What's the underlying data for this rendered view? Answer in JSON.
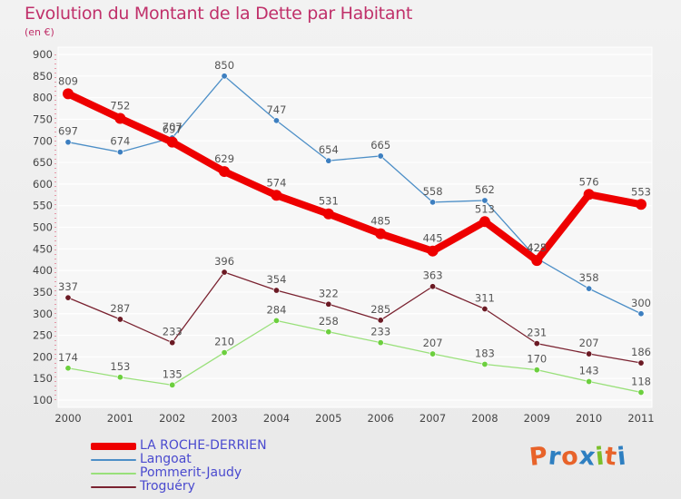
{
  "title": "Evolution du Montant de la Dette par Habitant",
  "subtitle": "(en €)",
  "logo": {
    "letters": [
      "P",
      "r",
      "o",
      "x",
      "i",
      "t",
      "i"
    ],
    "colors": [
      "#e8632a",
      "#2e7fc1",
      "#e8632a",
      "#2e7fc1",
      "#7bbf2a",
      "#e8632a",
      "#2e7fc1"
    ]
  },
  "chart_data": {
    "type": "line",
    "title": "Evolution du Montant de la Dette par Habitant",
    "subtitle": "(en €)",
    "xlabel": "",
    "ylabel": "",
    "categories": [
      "2000",
      "2001",
      "2002",
      "2003",
      "2004",
      "2005",
      "2006",
      "2007",
      "2008",
      "2009",
      "2010",
      "2011"
    ],
    "yticks": [
      100,
      150,
      200,
      250,
      300,
      350,
      400,
      450,
      500,
      550,
      600,
      650,
      700,
      750,
      800,
      850,
      900
    ],
    "ylim": [
      100,
      900
    ],
    "grid": "horizontal",
    "legend_position": "bottom-left",
    "series": [
      {
        "name": "Langoat",
        "color": "#4d8fc7",
        "marker": "#3d7fc0",
        "width": 1.3,
        "values": [
          697,
          674,
          707,
          850,
          747,
          654,
          665,
          558,
          562,
          428,
          358,
          300
        ]
      },
      {
        "name": "Pommerit-Jaudy",
        "color": "#99e07a",
        "marker": "#6ccf3e",
        "width": 1.3,
        "values": [
          174,
          153,
          135,
          210,
          284,
          258,
          233,
          207,
          183,
          170,
          143,
          118
        ]
      },
      {
        "name": "Troguéry",
        "color": "#7a2230",
        "marker": "#6b1a24",
        "width": 1.3,
        "values": [
          337,
          287,
          233,
          396,
          354,
          322,
          285,
          363,
          311,
          231,
          207,
          186
        ]
      },
      {
        "name": "LA ROCHE-DERRIEN",
        "color": "#ee0000",
        "marker": "#ee0000",
        "width": 8,
        "values": [
          809,
          752,
          697,
          629,
          574,
          531,
          485,
          445,
          513,
          423,
          576,
          553
        ]
      }
    ],
    "legend_order": [
      "LA ROCHE-DERRIEN",
      "Langoat",
      "Pommerit-Jaudy",
      "Troguéry"
    ]
  }
}
